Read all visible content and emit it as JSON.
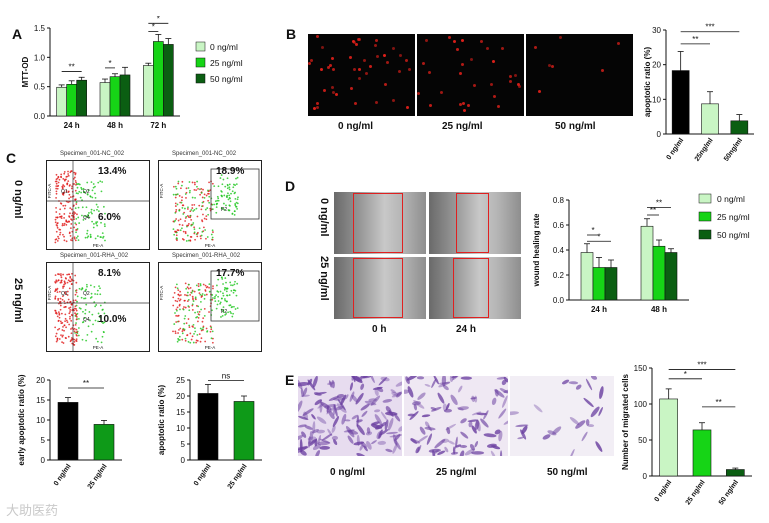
{
  "panels": {
    "A": "A",
    "B": "B",
    "C": "C",
    "D": "D",
    "E": "E"
  },
  "legend": [
    "0 ng/ml",
    "25 ng/ml",
    "50 ng/ml"
  ],
  "colors": {
    "c0": "#c9f5c4",
    "c25": "#16d416",
    "c50": "#0b5e12",
    "black": "#000000",
    "green_bar": "#0e9a18"
  },
  "chart_data": [
    {
      "id": "A",
      "type": "bar",
      "ylabel": "MTT-OD",
      "ylim": [
        0,
        1.5
      ],
      "yticks": [
        0.0,
        0.5,
        1.0,
        1.5
      ],
      "categories": [
        "24 h",
        "48 h",
        "72 h"
      ],
      "series": [
        {
          "name": "0 ng/ml",
          "values": [
            0.49,
            0.57,
            0.86
          ],
          "errors": [
            0.04,
            0.06,
            0.04
          ]
        },
        {
          "name": "25 ng/ml",
          "values": [
            0.54,
            0.67,
            1.27
          ],
          "errors": [
            0.06,
            0.05,
            0.12
          ]
        },
        {
          "name": "50 ng/ml",
          "values": [
            0.61,
            0.7,
            1.22
          ],
          "errors": [
            0.05,
            0.13,
            0.1
          ]
        }
      ],
      "annotations": [
        "**",
        "*",
        "*",
        "*"
      ]
    },
    {
      "id": "B",
      "type": "bar",
      "ylabel": "apoptotic ratio (%)",
      "ylim": [
        0,
        30
      ],
      "yticks": [
        0,
        10,
        20,
        30
      ],
      "categories": [
        "0 ng/ml",
        "25ng/ml",
        "50ng/ml"
      ],
      "values": [
        18.3,
        8.7,
        3.8
      ],
      "errors": [
        5.5,
        3.5,
        1.8
      ],
      "annotations": [
        "**",
        "***"
      ]
    },
    {
      "id": "C-early",
      "type": "bar",
      "ylabel": "early apoptotic ratio (%)",
      "ylim": [
        0,
        20
      ],
      "yticks": [
        0,
        5,
        10,
        15,
        20
      ],
      "categories": [
        "0 ng/ml",
        "25 ng/ml"
      ],
      "values": [
        14.4,
        8.9
      ],
      "errors": [
        1.2,
        1.0
      ],
      "annotations": [
        "**"
      ]
    },
    {
      "id": "C-total",
      "type": "bar",
      "ylabel": "apoptotic ratio (%)",
      "ylim": [
        0,
        25
      ],
      "yticks": [
        0,
        5,
        10,
        15,
        20,
        25
      ],
      "categories": [
        "0 ng/ml",
        "25 ng/ml"
      ],
      "values": [
        20.8,
        18.3
      ],
      "errors": [
        2.8,
        1.7
      ],
      "annotations": [
        "ns"
      ]
    },
    {
      "id": "D",
      "type": "bar",
      "ylabel": "wound healing rate",
      "ylim": [
        0,
        0.8
      ],
      "yticks": [
        0.0,
        0.2,
        0.4,
        0.6,
        0.8
      ],
      "categories": [
        "24 h",
        "48 h"
      ],
      "series": [
        {
          "name": "0 ng/ml",
          "values": [
            0.38,
            0.59
          ],
          "errors": [
            0.07,
            0.06
          ]
        },
        {
          "name": "25 ng/ml",
          "values": [
            0.26,
            0.43
          ],
          "errors": [
            0.08,
            0.05
          ]
        },
        {
          "name": "50 ng/ml",
          "values": [
            0.26,
            0.38
          ],
          "errors": [
            0.06,
            0.03
          ]
        }
      ],
      "annotations": [
        "*",
        "*",
        "**",
        "**"
      ]
    },
    {
      "id": "E",
      "type": "bar",
      "ylabel": "Number of migrated cells",
      "ylim": [
        0,
        150
      ],
      "yticks": [
        0,
        50,
        100,
        150
      ],
      "categories": [
        "0 ng/ml",
        "25 ng/ml",
        "50 ng/ml"
      ],
      "values": [
        107,
        64,
        9
      ],
      "errors": [
        14,
        10,
        2
      ],
      "annotations": [
        "*",
        "**",
        "***"
      ]
    }
  ],
  "B_images": {
    "labels": [
      "0 ng/ml",
      "25 ng/ml",
      "50 ng/ml"
    ]
  },
  "C_flow": {
    "row_labels": [
      "0 ng/ml",
      "25 ng/ml"
    ],
    "plots": [
      {
        "title": "Specimen_001-NC_002",
        "pct_top": "13.4%",
        "pct_bottom": "6.0%",
        "q_tl": "Q1",
        "q_tr": "Q2",
        "q_br": "Q4",
        "xaxis": "PE-A",
        "yaxis": "FITC-A"
      },
      {
        "title": "Specimen_001-NC_002",
        "pct_top": "18.9%",
        "gate": "P2",
        "xaxis": "PE-A",
        "yaxis": "FITC-A"
      },
      {
        "title": "Specimen_001-RHA_002",
        "pct_top": "8.1%",
        "pct_bottom": "10.0%",
        "q_tl": "Q1",
        "q_tr": "Q2",
        "q_br": "Q4",
        "xaxis": "PE-A",
        "yaxis": "FITC-A"
      },
      {
        "title": "Specimen_001-RHA_002",
        "pct_top": "17.7%",
        "gate": "P2",
        "xaxis": "PE-A",
        "yaxis": "FITC-A"
      }
    ]
  },
  "D_images": {
    "row_labels": [
      "0 ng/ml",
      "25 ng/ml"
    ],
    "col_labels": [
      "0 h",
      "24 h"
    ]
  },
  "E_images": {
    "labels": [
      "0 ng/ml",
      "25 ng/ml",
      "50 ng/ml"
    ]
  },
  "watermark": "大助医药"
}
